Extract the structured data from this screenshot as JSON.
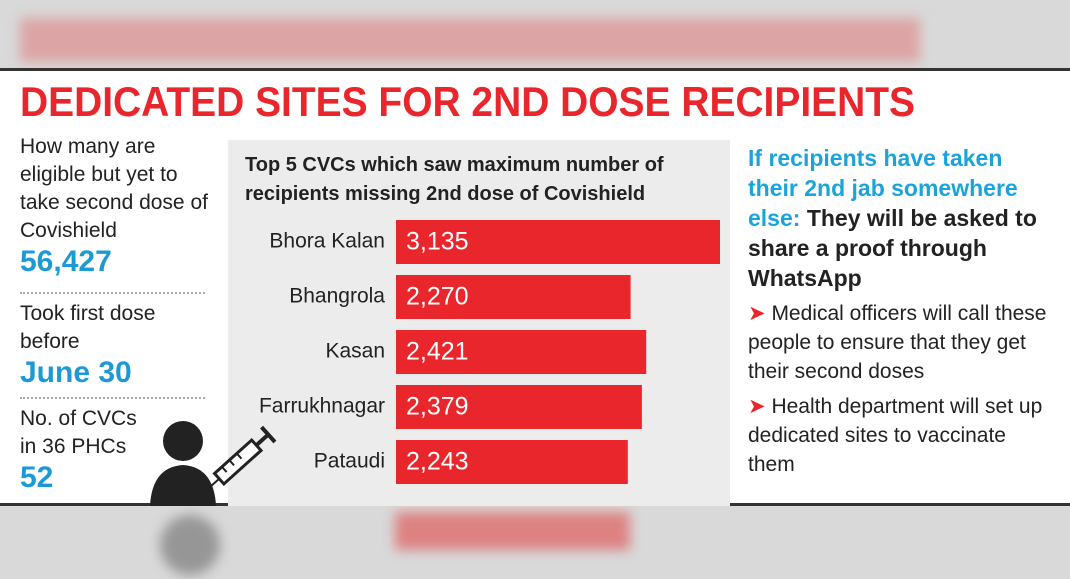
{
  "title": "DEDICATED SITES FOR 2ND DOSE RECIPIENTS",
  "stats": [
    {
      "label": "How many are eligible but yet to take second dose of Covishield",
      "value": "56,427"
    },
    {
      "label": "Took first dose before",
      "value": "June 30"
    },
    {
      "label": "No. of CVCs in 36 PHCs",
      "value": "52"
    }
  ],
  "chart_data": {
    "type": "bar",
    "orientation": "horizontal",
    "title": "Top 5 CVCs which saw maximum number of recipients missing 2nd dose of Covishield",
    "categories": [
      "Bhora Kalan",
      "Bhangrola",
      "Kasan",
      "Farrukhnagar",
      "Pataudi"
    ],
    "values": [
      3135,
      2270,
      2421,
      2379,
      2243
    ],
    "value_labels": [
      "3,135",
      "2,270",
      "2,421",
      "2,379",
      "2,243"
    ],
    "color": "#e8262b"
  },
  "note": {
    "lead": "If recipients have taken their 2nd jab somewhere else:",
    "text": "They will be asked to share a proof through WhatsApp",
    "bullets": [
      "Medical officers will call these people to ensure that they get their second doses",
      "Health department will set up dedicated sites to vaccinate them"
    ]
  }
}
